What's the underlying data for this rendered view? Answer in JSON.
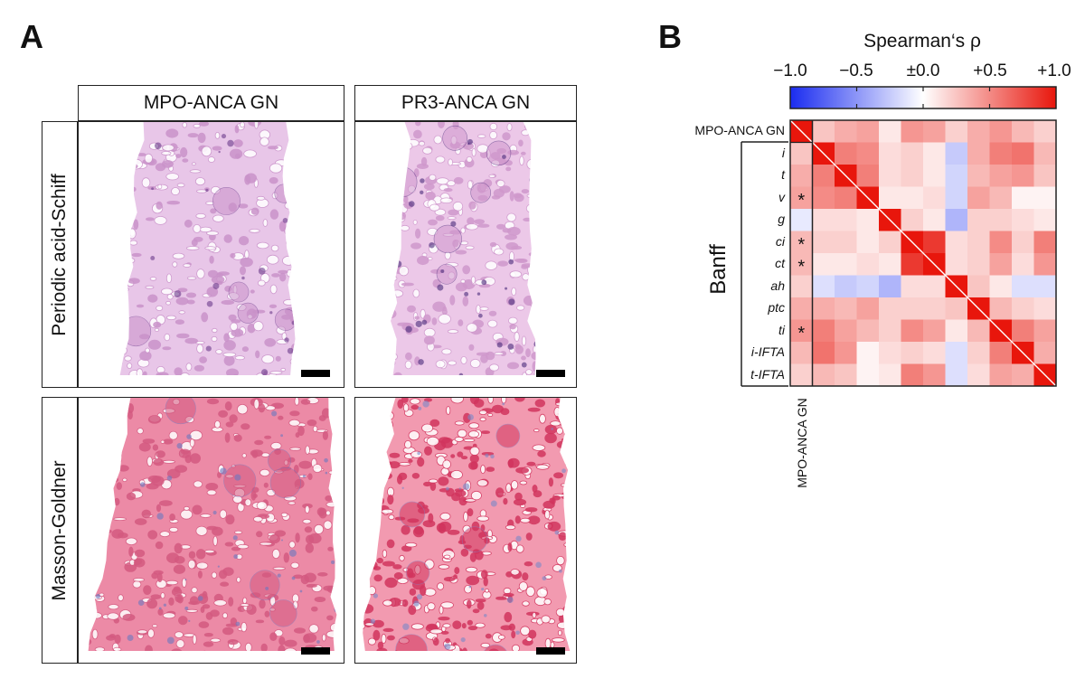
{
  "panel_a": {
    "letter": "A",
    "columns": [
      "MPO-ANCA GN",
      "PR3-ANCA GN"
    ],
    "rows": [
      "Periodic acid-Schiff",
      "Masson-Goldner"
    ],
    "images": [
      {
        "name": "pas-mpo",
        "stain": "pas",
        "base": "#e8c6e8",
        "tubule": "#c992c9",
        "dark": "#6a3a8a",
        "seed": 11
      },
      {
        "name": "pas-pr3",
        "stain": "pas",
        "base": "#ecc8e8",
        "tubule": "#cf98cc",
        "dark": "#4a2a7a",
        "seed": 23
      },
      {
        "name": "mg-mpo",
        "stain": "mg",
        "base": "#ec8aa6",
        "tubule": "#d45a80",
        "dark": "#6a78c0",
        "seed": 37
      },
      {
        "name": "mg-pr3",
        "stain": "mg",
        "base": "#f29ab0",
        "tubule": "#d2355e",
        "dark": "#7a88c8",
        "seed": 53
      }
    ]
  },
  "panel_b": {
    "letter": "B",
    "colorbar_title": "Spearman‘s ρ",
    "colorbar_ticks": [
      "−1.0",
      "−0.5",
      "±0.0",
      "+0.5",
      "+1.0"
    ],
    "colorbar_colors": {
      "neg": "#1a2cf0",
      "zero": "#ffffff",
      "pos": "#e8160c"
    },
    "group_label": "Banff",
    "bottom_label": "MPO-ANCA GN"
  },
  "chart_data": {
    "type": "heatmap",
    "title": "Spearman‘s ρ",
    "vmin": -1.0,
    "vmax": 1.0,
    "row_labels": [
      "MPO-ANCA GN",
      "i",
      "t",
      "v",
      "g",
      "ci",
      "ct",
      "ah",
      "ptc",
      "ti",
      "i-IFTA",
      "t-IFTA"
    ],
    "col_labels": [
      "MPO-ANCA GN"
    ],
    "significant": [
      "v",
      "ci",
      "ct",
      "ti"
    ],
    "significance_marker": "*",
    "matrix": [
      [
        1.0,
        0.25,
        0.35,
        0.4,
        0.1,
        0.45,
        0.4,
        0.2,
        0.35,
        0.45,
        0.3,
        0.2
      ],
      [
        0.25,
        1.0,
        0.55,
        0.5,
        0.15,
        0.2,
        0.1,
        -0.25,
        0.35,
        0.55,
        0.6,
        0.3
      ],
      [
        0.35,
        0.55,
        1.0,
        0.55,
        0.15,
        0.2,
        0.1,
        -0.2,
        0.3,
        0.4,
        0.45,
        0.25
      ],
      [
        0.4,
        0.5,
        0.55,
        1.0,
        0.1,
        0.1,
        0.15,
        -0.2,
        0.4,
        0.3,
        0.05,
        0.05
      ],
      [
        -0.1,
        0.15,
        0.15,
        0.1,
        1.0,
        0.2,
        0.1,
        -0.35,
        0.2,
        0.2,
        0.15,
        0.1
      ],
      [
        0.3,
        0.2,
        0.2,
        0.1,
        0.2,
        1.0,
        0.85,
        0.15,
        0.2,
        0.5,
        0.2,
        0.55
      ],
      [
        0.3,
        0.1,
        0.1,
        0.15,
        0.1,
        0.85,
        1.0,
        0.15,
        0.2,
        0.4,
        0.15,
        0.45
      ],
      [
        0.2,
        -0.15,
        -0.25,
        -0.2,
        -0.35,
        0.15,
        0.15,
        1.0,
        0.25,
        0.1,
        -0.15,
        -0.15
      ],
      [
        0.35,
        0.35,
        0.3,
        0.4,
        0.2,
        0.2,
        0.2,
        0.25,
        1.0,
        0.3,
        0.2,
        0.15
      ],
      [
        0.45,
        0.55,
        0.4,
        0.3,
        0.2,
        0.5,
        0.4,
        0.1,
        0.3,
        1.0,
        0.55,
        0.4
      ],
      [
        0.3,
        0.6,
        0.45,
        0.05,
        0.15,
        0.2,
        0.15,
        -0.15,
        0.2,
        0.55,
        1.0,
        0.35
      ],
      [
        0.2,
        0.3,
        0.25,
        0.05,
        0.1,
        0.55,
        0.45,
        -0.15,
        0.15,
        0.4,
        0.35,
        1.0
      ]
    ]
  }
}
